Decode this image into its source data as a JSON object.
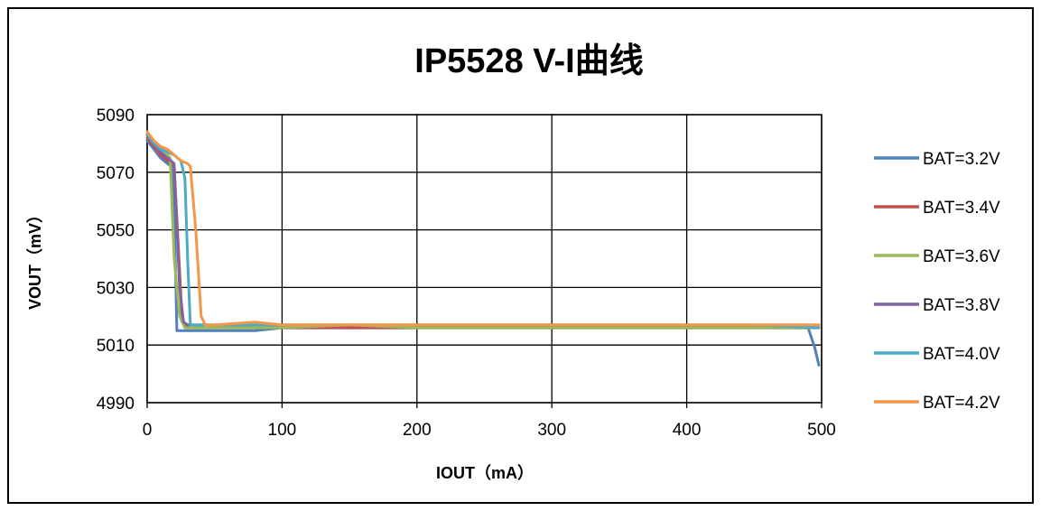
{
  "chart_data": {
    "type": "line",
    "title": "IP5528 V-I曲线",
    "xlabel": "IOUT（mA）",
    "ylabel": "VOUT（mV）",
    "xlim": [
      0,
      500
    ],
    "ylim": [
      4990,
      5090
    ],
    "x_ticks": [
      "0",
      "100",
      "200",
      "300",
      "400",
      "500"
    ],
    "y_ticks": [
      "4990",
      "5010",
      "5030",
      "5050",
      "5070",
      "5090"
    ],
    "grid": "vertical and horizontal major gridlines",
    "legend_position": "right",
    "series": [
      {
        "name": "BAT=3.2V",
        "color": "#4F81BD",
        "points": [
          [
            0,
            5081
          ],
          [
            5,
            5078
          ],
          [
            10,
            5075
          ],
          [
            15,
            5073
          ],
          [
            18,
            5072
          ],
          [
            20,
            5058
          ],
          [
            22,
            5015
          ],
          [
            25,
            5015
          ],
          [
            30,
            5015
          ],
          [
            50,
            5015
          ],
          [
            80,
            5015
          ],
          [
            100,
            5016
          ],
          [
            150,
            5016
          ],
          [
            200,
            5016
          ],
          [
            250,
            5016
          ],
          [
            300,
            5016
          ],
          [
            350,
            5016
          ],
          [
            400,
            5016
          ],
          [
            450,
            5016
          ],
          [
            480,
            5016
          ],
          [
            490,
            5016
          ],
          [
            495,
            5009
          ],
          [
            498,
            5003
          ]
        ]
      },
      {
        "name": "BAT=3.4V",
        "color": "#C0504D",
        "points": [
          [
            0,
            5082
          ],
          [
            5,
            5079
          ],
          [
            10,
            5076
          ],
          [
            15,
            5074
          ],
          [
            20,
            5072
          ],
          [
            23,
            5045
          ],
          [
            26,
            5018
          ],
          [
            30,
            5016
          ],
          [
            50,
            5016
          ],
          [
            100,
            5016
          ],
          [
            150,
            5016
          ],
          [
            200,
            5016
          ],
          [
            250,
            5016
          ],
          [
            300,
            5016
          ],
          [
            350,
            5016
          ],
          [
            400,
            5016
          ],
          [
            450,
            5016
          ],
          [
            498,
            5016
          ]
        ]
      },
      {
        "name": "BAT=3.6V",
        "color": "#9BBB59",
        "points": [
          [
            0,
            5083
          ],
          [
            5,
            5080
          ],
          [
            10,
            5077
          ],
          [
            15,
            5076
          ],
          [
            17,
            5075
          ],
          [
            20,
            5040
          ],
          [
            24,
            5020
          ],
          [
            28,
            5016
          ],
          [
            35,
            5016
          ],
          [
            80,
            5016
          ],
          [
            100,
            5016
          ],
          [
            150,
            5017
          ],
          [
            200,
            5016
          ],
          [
            250,
            5016
          ],
          [
            300,
            5016
          ],
          [
            350,
            5016
          ],
          [
            400,
            5016
          ],
          [
            450,
            5016
          ],
          [
            498,
            5016
          ]
        ]
      },
      {
        "name": "BAT=3.8V",
        "color": "#8064A2",
        "points": [
          [
            0,
            5083
          ],
          [
            5,
            5080
          ],
          [
            10,
            5077
          ],
          [
            15,
            5075
          ],
          [
            20,
            5073
          ],
          [
            24,
            5030
          ],
          [
            27,
            5018
          ],
          [
            30,
            5017
          ],
          [
            50,
            5017
          ],
          [
            100,
            5017
          ],
          [
            150,
            5017
          ],
          [
            200,
            5017
          ],
          [
            250,
            5017
          ],
          [
            300,
            5017
          ],
          [
            350,
            5017
          ],
          [
            400,
            5017
          ],
          [
            450,
            5017
          ],
          [
            498,
            5017
          ]
        ]
      },
      {
        "name": "BAT=4.0V",
        "color": "#4BACC6",
        "points": [
          [
            0,
            5083
          ],
          [
            5,
            5080
          ],
          [
            10,
            5078
          ],
          [
            15,
            5077
          ],
          [
            20,
            5076
          ],
          [
            25,
            5074
          ],
          [
            28,
            5068
          ],
          [
            30,
            5040
          ],
          [
            32,
            5017
          ],
          [
            40,
            5017
          ],
          [
            50,
            5017
          ],
          [
            100,
            5017
          ],
          [
            150,
            5017
          ],
          [
            200,
            5017
          ],
          [
            250,
            5017
          ],
          [
            300,
            5017
          ],
          [
            350,
            5017
          ],
          [
            400,
            5017
          ],
          [
            450,
            5017
          ],
          [
            498,
            5016
          ]
        ]
      },
      {
        "name": "BAT=4.2V",
        "color": "#F79646",
        "points": [
          [
            0,
            5084
          ],
          [
            5,
            5081
          ],
          [
            10,
            5079
          ],
          [
            15,
            5078
          ],
          [
            20,
            5076
          ],
          [
            25,
            5074
          ],
          [
            30,
            5073
          ],
          [
            32,
            5072
          ],
          [
            36,
            5050
          ],
          [
            40,
            5020
          ],
          [
            43,
            5017
          ],
          [
            50,
            5017
          ],
          [
            80,
            5018
          ],
          [
            100,
            5017
          ],
          [
            150,
            5017
          ],
          [
            200,
            5017
          ],
          [
            250,
            5017
          ],
          [
            300,
            5017
          ],
          [
            350,
            5017
          ],
          [
            400,
            5017
          ],
          [
            450,
            5017
          ],
          [
            498,
            5017
          ]
        ]
      }
    ]
  }
}
